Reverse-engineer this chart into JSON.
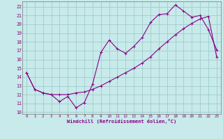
{
  "xlabel": "Windchill (Refroidissement éolien,°C)",
  "bg_color": "#c8eaea",
  "grid_color": "#a0cccc",
  "line_color": "#880088",
  "spine_color": "#888888",
  "xlim": [
    -0.5,
    23.5
  ],
  "ylim": [
    9.8,
    22.6
  ],
  "yticks": [
    10,
    11,
    12,
    13,
    14,
    15,
    16,
    17,
    18,
    19,
    20,
    21,
    22
  ],
  "xticks": [
    0,
    1,
    2,
    3,
    4,
    5,
    6,
    7,
    8,
    9,
    10,
    11,
    12,
    13,
    14,
    15,
    16,
    17,
    18,
    19,
    20,
    21,
    22,
    23
  ],
  "line1_x": [
    0,
    1,
    2,
    3,
    4,
    5,
    6,
    7,
    8,
    9,
    10,
    11,
    12,
    13,
    14,
    15,
    16,
    17,
    18,
    19,
    20,
    21,
    22,
    23
  ],
  "line1_y": [
    14.5,
    12.6,
    12.2,
    12.0,
    11.2,
    11.8,
    10.5,
    11.1,
    13.2,
    16.8,
    18.2,
    17.2,
    16.7,
    17.5,
    18.5,
    20.2,
    21.1,
    21.2,
    22.2,
    21.5,
    20.8,
    21.0,
    19.4,
    17.1
  ],
  "line2_x": [
    0,
    1,
    2,
    3,
    4,
    5,
    6,
    7,
    8,
    9,
    10,
    11,
    12,
    13,
    14,
    15,
    16,
    17,
    18,
    19,
    20,
    21,
    22,
    23
  ],
  "line2_y": [
    14.5,
    12.6,
    12.2,
    12.0,
    12.0,
    12.0,
    12.2,
    12.3,
    12.6,
    13.0,
    13.5,
    14.0,
    14.5,
    15.0,
    15.6,
    16.3,
    17.2,
    18.0,
    18.8,
    19.5,
    20.1,
    20.6,
    20.9,
    16.3
  ]
}
